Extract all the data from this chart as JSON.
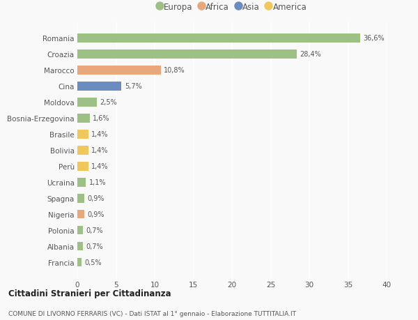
{
  "categories": [
    "Francia",
    "Albania",
    "Polonia",
    "Nigeria",
    "Spagna",
    "Ucraina",
    "Perù",
    "Bolivia",
    "Brasile",
    "Bosnia-Erzegovina",
    "Moldova",
    "Cina",
    "Marocco",
    "Croazia",
    "Romania"
  ],
  "values": [
    0.5,
    0.7,
    0.7,
    0.9,
    0.9,
    1.1,
    1.4,
    1.4,
    1.4,
    1.6,
    2.5,
    5.7,
    10.8,
    28.4,
    36.6
  ],
  "labels": [
    "0,5%",
    "0,7%",
    "0,7%",
    "0,9%",
    "0,9%",
    "1,1%",
    "1,4%",
    "1,4%",
    "1,4%",
    "1,6%",
    "2,5%",
    "5,7%",
    "10,8%",
    "28,4%",
    "36,6%"
  ],
  "colors": [
    "#9dc185",
    "#9dc185",
    "#9dc185",
    "#e8a87c",
    "#9dc185",
    "#9dc185",
    "#f0c75a",
    "#f0c75a",
    "#f0c75a",
    "#9dc185",
    "#9dc185",
    "#6b8cbf",
    "#e8a87c",
    "#9dc185",
    "#9dc185"
  ],
  "continent_colors": {
    "Europa": "#9dc185",
    "Africa": "#e8a87c",
    "Asia": "#6b8cbf",
    "America": "#f0c75a"
  },
  "legend_labels": [
    "Europa",
    "Africa",
    "Asia",
    "America"
  ],
  "xlim": [
    0,
    40
  ],
  "xticks": [
    0,
    5,
    10,
    15,
    20,
    25,
    30,
    35,
    40
  ],
  "title": "Cittadini Stranieri per Cittadinanza",
  "subtitle": "COMUNE DI LIVORNO FERRARIS (VC) - Dati ISTAT al 1° gennaio - Elaborazione TUTTITALIA.IT",
  "bg_color": "#f9f9f9",
  "grid_color": "#ffffff",
  "bar_height": 0.55
}
